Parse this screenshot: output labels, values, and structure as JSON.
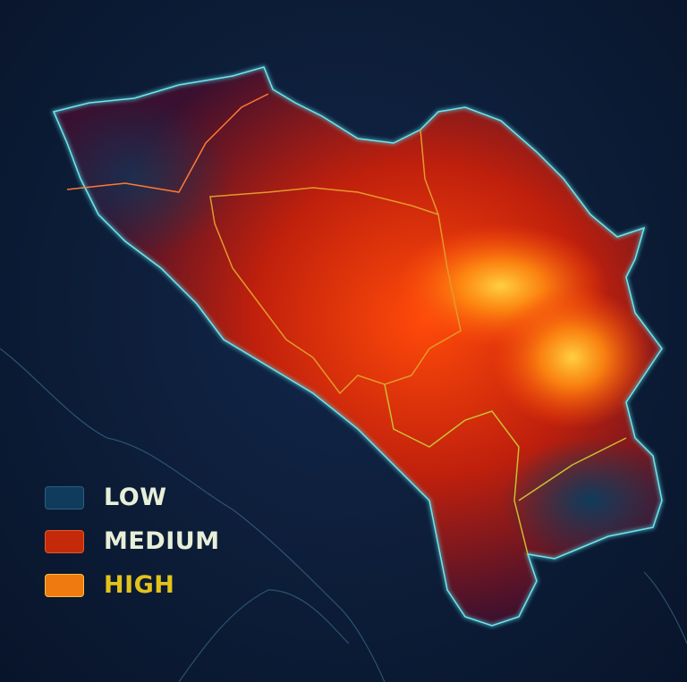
{
  "legend": {
    "items": [
      {
        "label": "LOW",
        "color": "#0f3b5c",
        "text_color": "#e8efd8"
      },
      {
        "label": "MEDIUM",
        "color": "#c42a0a",
        "text_color": "#e8efd8"
      },
      {
        "label": "HIGH",
        "color": "#ef7a10",
        "text_color": "#e3c21a"
      }
    ]
  },
  "colors": {
    "background": "#0c1c36",
    "outline": "#4fd6e0",
    "internal_border": "#e39a2a",
    "heat_low": "#3a1030",
    "heat_medium": "#e02a08",
    "heat_high": "#ffc020"
  }
}
